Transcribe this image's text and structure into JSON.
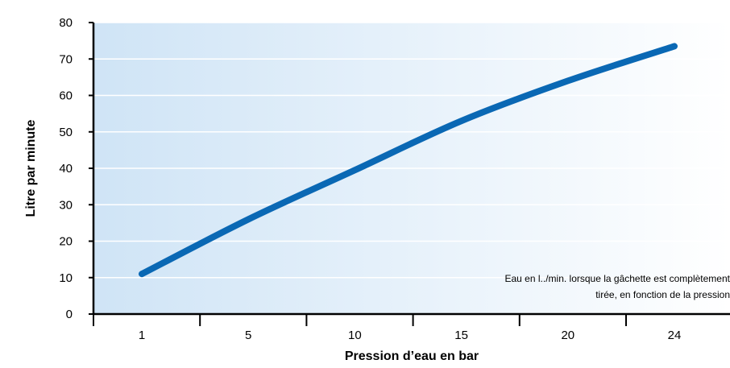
{
  "chart_data": {
    "type": "line",
    "title": "",
    "xlabel": "Pression d’eau en bar",
    "ylabel": "Litre par minute",
    "x_tick_labels": [
      "1",
      "5",
      "10",
      "15",
      "20",
      "24"
    ],
    "y_ticks": [
      0,
      10,
      20,
      30,
      40,
      50,
      60,
      70,
      80
    ],
    "y_tick_labels": [
      "0",
      "10",
      "20",
      "30",
      "40",
      "50",
      "60",
      "70",
      "80"
    ],
    "ylim": [
      0,
      80
    ],
    "grid": true,
    "series": [
      {
        "values": [
          {
            "x": "1",
            "y": 11
          },
          {
            "x": "5",
            "y": 26
          },
          {
            "x": "10",
            "y": 39.5
          },
          {
            "x": "15",
            "y": 53
          },
          {
            "x": "20",
            "y": 64
          },
          {
            "x": "24",
            "y": 73.5
          }
        ]
      }
    ],
    "annotation": [
      "Eau en l../min. lorsque la gâchette est complètement",
      "tirée, en fonction de la pression"
    ],
    "colors": {
      "line": "#0a68b4",
      "background_left": "#cfe4f6",
      "background_right": "#ffffff",
      "axis": "#000000",
      "grid": "#ffffff"
    }
  }
}
